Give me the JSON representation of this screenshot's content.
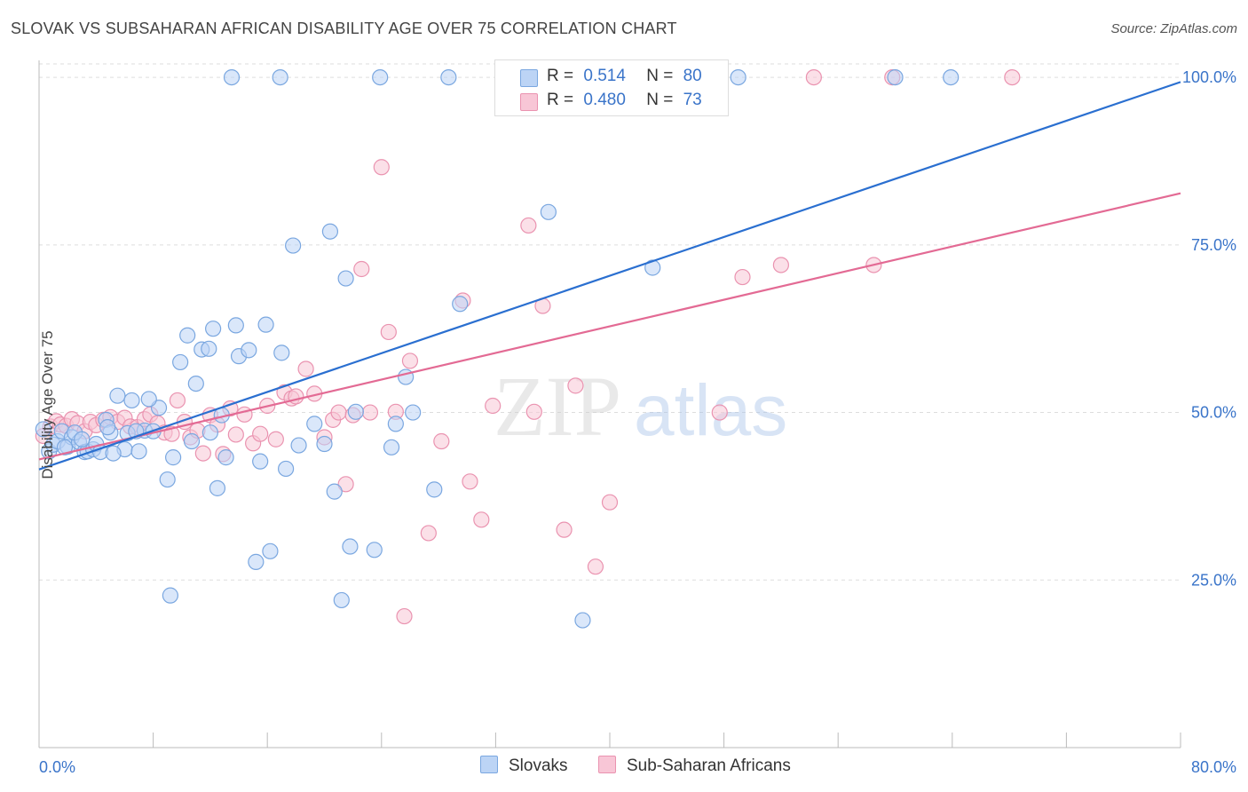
{
  "title": "SLOVAK VS SUBSAHARAN AFRICAN DISABILITY AGE OVER 75 CORRELATION CHART",
  "source": "Source: ZipAtlas.com",
  "watermark": {
    "zip": "ZIP",
    "atlas": "atlas"
  },
  "legend": {
    "r_label": "R =",
    "n_label": "N =",
    "rows": [
      {
        "r": "0.514",
        "n": "80"
      },
      {
        "r": "0.480",
        "n": "73"
      }
    ]
  },
  "colors": {
    "slovaks_fill": "#bcd4f5",
    "slovaks_stroke": "#7aa7e0",
    "slovaks_line": "#2a6fd0",
    "africans_fill": "#f8c6d6",
    "africans_stroke": "#ea93b0",
    "africans_line": "#e36a94",
    "tick_text": "#3a74c9",
    "grid": "#dddddd"
  },
  "chart_data": {
    "type": "scatter",
    "xlabel": "",
    "ylabel": "Disability Age Over 75",
    "xlim": [
      0,
      80
    ],
    "ylim": [
      0,
      102
    ],
    "x_tick_labels": [
      "0.0%",
      "80.0%"
    ],
    "y_ticks": [
      25,
      50,
      75,
      100
    ],
    "y_tick_labels": [
      "25.0%",
      "50.0%",
      "75.0%",
      "100.0%"
    ],
    "grid": "horizontal dashed",
    "series": [
      {
        "name": "Slovaks",
        "r": 0.514,
        "n": 80,
        "trend": [
          [
            0,
            41.5
          ],
          [
            80,
            99.3
          ]
        ],
        "points": [
          [
            0.3,
            47.5
          ],
          [
            0.7,
            44.2
          ],
          [
            1.0,
            45.2
          ],
          [
            1.3,
            45.7
          ],
          [
            1.6,
            47.2
          ],
          [
            2.0,
            44.9
          ],
          [
            2.3,
            46.3
          ],
          [
            2.8,
            45.6
          ],
          [
            3.2,
            44.1
          ],
          [
            3.4,
            44.2
          ],
          [
            3.8,
            44.5
          ],
          [
            4.0,
            45.3
          ],
          [
            4.3,
            44.1
          ],
          [
            4.7,
            48.9
          ],
          [
            5.0,
            47.0
          ],
          [
            5.5,
            52.5
          ],
          [
            6.0,
            44.5
          ],
          [
            6.2,
            46.9
          ],
          [
            6.5,
            51.8
          ],
          [
            7.0,
            44.2
          ],
          [
            7.4,
            47.3
          ],
          [
            8.0,
            47.2
          ],
          [
            8.4,
            50.7
          ],
          [
            9.0,
            40.0
          ],
          [
            9.4,
            43.3
          ],
          [
            9.9,
            57.5
          ],
          [
            10.4,
            61.5
          ],
          [
            10.7,
            45.7
          ],
          [
            11.0,
            54.3
          ],
          [
            11.4,
            59.4
          ],
          [
            11.9,
            59.5
          ],
          [
            12.2,
            62.5
          ],
          [
            12.5,
            38.7
          ],
          [
            12.8,
            49.6
          ],
          [
            13.1,
            43.3
          ],
          [
            13.5,
            100.0
          ],
          [
            13.8,
            63.0
          ],
          [
            14.0,
            58.4
          ],
          [
            14.7,
            59.3
          ],
          [
            15.2,
            27.7
          ],
          [
            15.5,
            42.7
          ],
          [
            15.9,
            63.1
          ],
          [
            16.2,
            29.3
          ],
          [
            17.0,
            58.9
          ],
          [
            17.3,
            41.6
          ],
          [
            17.8,
            74.9
          ],
          [
            18.2,
            45.1
          ],
          [
            19.3,
            48.3
          ],
          [
            20.0,
            45.3
          ],
          [
            20.4,
            77.0
          ],
          [
            20.7,
            38.2
          ],
          [
            21.5,
            70.0
          ],
          [
            21.8,
            30.0
          ],
          [
            22.2,
            50.1
          ],
          [
            23.5,
            29.5
          ],
          [
            23.9,
            100.0
          ],
          [
            24.7,
            44.8
          ],
          [
            25.0,
            48.3
          ],
          [
            25.7,
            55.3
          ],
          [
            26.2,
            50.0
          ],
          [
            27.7,
            38.5
          ],
          [
            28.7,
            100.0
          ],
          [
            29.5,
            66.2
          ],
          [
            35.7,
            79.9
          ],
          [
            38.1,
            19.0
          ],
          [
            43.0,
            71.6
          ],
          [
            49.0,
            100.0
          ],
          [
            60.0,
            100.0
          ],
          [
            63.9,
            100.0
          ],
          [
            21.2,
            22.0
          ],
          [
            16.9,
            100.0
          ],
          [
            12.0,
            47.0
          ],
          [
            9.2,
            22.7
          ],
          [
            2.5,
            47.0
          ],
          [
            5.2,
            43.9
          ],
          [
            4.8,
            47.8
          ],
          [
            6.8,
            47.2
          ],
          [
            7.7,
            52.0
          ],
          [
            3.0,
            46.0
          ],
          [
            1.8,
            44.8
          ]
        ]
      },
      {
        "name": "Sub-Saharan Africans",
        "r": 0.48,
        "n": 73,
        "trend": [
          [
            0,
            43.0
          ],
          [
            80,
            82.7
          ]
        ],
        "points": [
          [
            0.3,
            46.5
          ],
          [
            0.8,
            47.9
          ],
          [
            1.2,
            48.7
          ],
          [
            1.5,
            48.2
          ],
          [
            1.9,
            48.0
          ],
          [
            2.3,
            49.0
          ],
          [
            2.7,
            48.4
          ],
          [
            3.2,
            47.2
          ],
          [
            3.6,
            48.6
          ],
          [
            4.0,
            48.1
          ],
          [
            4.5,
            48.9
          ],
          [
            5.0,
            49.3
          ],
          [
            5.5,
            48.6
          ],
          [
            6.0,
            49.2
          ],
          [
            6.4,
            47.9
          ],
          [
            6.9,
            47.8
          ],
          [
            7.4,
            49.0
          ],
          [
            7.8,
            49.7
          ],
          [
            8.3,
            48.4
          ],
          [
            8.8,
            47.0
          ],
          [
            9.3,
            46.8
          ],
          [
            9.7,
            51.8
          ],
          [
            10.2,
            48.6
          ],
          [
            10.6,
            46.3
          ],
          [
            11.1,
            47.3
          ],
          [
            11.5,
            43.9
          ],
          [
            12.0,
            49.6
          ],
          [
            12.5,
            48.2
          ],
          [
            12.9,
            43.8
          ],
          [
            13.4,
            50.6
          ],
          [
            13.8,
            46.7
          ],
          [
            14.4,
            49.7
          ],
          [
            15.0,
            45.4
          ],
          [
            15.5,
            46.8
          ],
          [
            16.0,
            51.0
          ],
          [
            16.6,
            46.0
          ],
          [
            17.2,
            53.0
          ],
          [
            17.7,
            52.1
          ],
          [
            18.0,
            52.4
          ],
          [
            18.7,
            56.5
          ],
          [
            19.3,
            52.8
          ],
          [
            20.0,
            46.3
          ],
          [
            20.6,
            48.9
          ],
          [
            21.0,
            50.0
          ],
          [
            21.5,
            39.3
          ],
          [
            22.0,
            49.6
          ],
          [
            22.6,
            71.4
          ],
          [
            23.2,
            50.0
          ],
          [
            24.0,
            86.6
          ],
          [
            24.5,
            62.0
          ],
          [
            25.0,
            50.1
          ],
          [
            25.6,
            19.6
          ],
          [
            26.0,
            57.7
          ],
          [
            27.3,
            32.0
          ],
          [
            28.2,
            45.7
          ],
          [
            29.7,
            66.7
          ],
          [
            30.2,
            39.7
          ],
          [
            31.0,
            34.0
          ],
          [
            31.8,
            51.0
          ],
          [
            34.3,
            77.9
          ],
          [
            34.7,
            50.1
          ],
          [
            35.3,
            65.9
          ],
          [
            36.8,
            32.5
          ],
          [
            37.6,
            54.0
          ],
          [
            39.0,
            27.0
          ],
          [
            40.0,
            36.6
          ],
          [
            47.7,
            50.0
          ],
          [
            49.3,
            70.2
          ],
          [
            52.0,
            72.0
          ],
          [
            54.3,
            100.0
          ],
          [
            58.5,
            72.0
          ],
          [
            59.8,
            100.0
          ],
          [
            68.2,
            100.0
          ]
        ]
      }
    ]
  }
}
